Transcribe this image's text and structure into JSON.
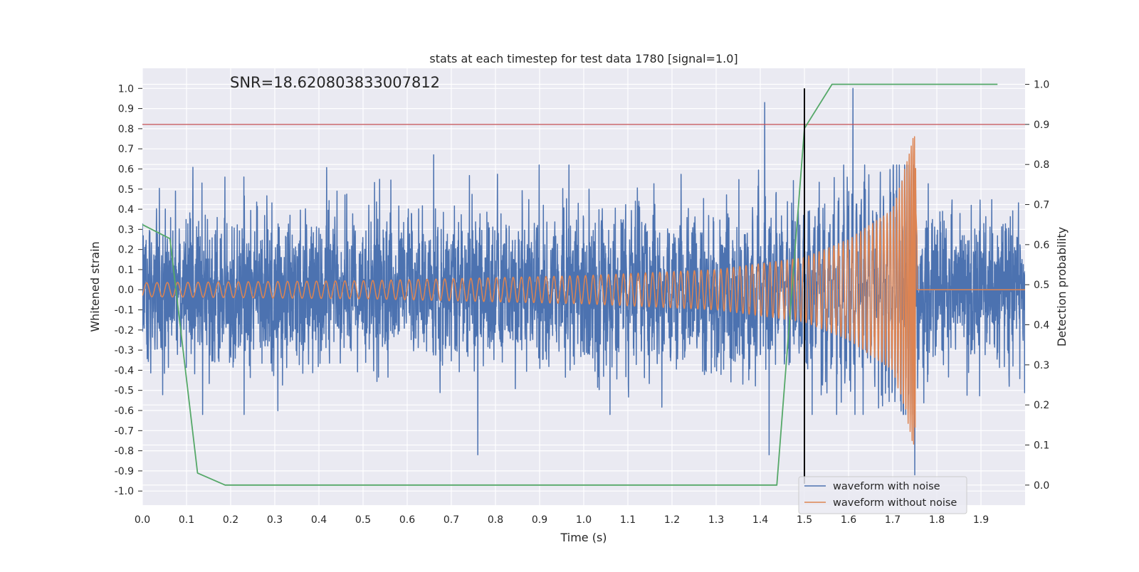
{
  "chart_data": {
    "type": "line",
    "title": "stats at each timestep for test data 1780 [signal=1.0]",
    "annotation": "SNR=18.620803833007812",
    "xlabel": "Time (s)",
    "ylabel_left": "Whitened strain",
    "ylabel_right": "Detection probability",
    "xlim": [
      0.0,
      2.0
    ],
    "ylim_left": [
      -1.07,
      1.1
    ],
    "ylim_right": [
      -0.05,
      1.04
    ],
    "x_ticks": [
      "0.0",
      "0.1",
      "0.2",
      "0.3",
      "0.4",
      "0.5",
      "0.6",
      "0.7",
      "0.8",
      "0.9",
      "1.0",
      "1.1",
      "1.2",
      "1.3",
      "1.4",
      "1.5",
      "1.6",
      "1.7",
      "1.8",
      "1.9"
    ],
    "y_left_ticks": [
      "1.0",
      "0.9",
      "0.8",
      "0.7",
      "0.6",
      "0.5",
      "0.4",
      "0.3",
      "0.2",
      "0.1",
      "0.0",
      "-0.1",
      "-0.2",
      "-0.3",
      "-0.4",
      "-0.5",
      "-0.6",
      "-0.7",
      "-0.8",
      "-0.9",
      "-1.0"
    ],
    "y_right_ticks": [
      "1.0",
      "0.9",
      "0.8",
      "0.7",
      "0.6",
      "0.5",
      "0.4",
      "0.3",
      "0.2",
      "0.1",
      "0.0"
    ],
    "grid": true,
    "legend_position": "lower-right",
    "threshold_line": {
      "y_right": 0.9,
      "color": "#c44e52"
    },
    "detection_time_line": {
      "x": 1.5,
      "color": "#000000"
    },
    "series": [
      {
        "name": "waveform with noise",
        "axis": "left",
        "color": "#4c72b0",
        "description_of_envelope": "noise approx. within +/-0.5, spikes to 0.93 at t~1.42 and 1.0 at t~1.61, -0.82 at t~0.76 and t~1.42, -0.92 at t~1.75",
        "notable_points": [
          [
            0.0,
            0.33
          ],
          [
            0.075,
            0.49
          ],
          [
            0.135,
            0.53
          ],
          [
            0.23,
            0.56
          ],
          [
            0.66,
            0.67
          ],
          [
            0.76,
            -0.82
          ],
          [
            1.41,
            0.93
          ],
          [
            1.42,
            -0.82
          ],
          [
            1.61,
            1.0
          ],
          [
            1.75,
            -0.92
          ]
        ]
      },
      {
        "name": "waveform without noise",
        "axis": "left",
        "color": "#dd8452",
        "description_of_envelope": "chirp starting ~0.035 amplitude at t=0, growing to ~0.8 near t=1.75 (merger) then 0 afterwards",
        "amplitude_points": [
          [
            0.0,
            0.035
          ],
          [
            0.5,
            0.045
          ],
          [
            1.0,
            0.07
          ],
          [
            1.3,
            0.1
          ],
          [
            1.5,
            0.16
          ],
          [
            1.6,
            0.25
          ],
          [
            1.7,
            0.4
          ],
          [
            1.73,
            0.62
          ],
          [
            1.75,
            0.82
          ],
          [
            1.76,
            0.0
          ],
          [
            2.0,
            0.0
          ]
        ]
      },
      {
        "name": "",
        "axis": "right",
        "color": "#55a868",
        "x": [
          0.0,
          0.0625,
          0.125,
          0.1875,
          0.25,
          1.375,
          1.4375,
          1.5,
          1.5625,
          1.9375
        ],
        "values": [
          0.65,
          0.615,
          0.03,
          0.0,
          0.0,
          0.0,
          0.0,
          0.89,
          1.0,
          1.0
        ]
      }
    ]
  }
}
